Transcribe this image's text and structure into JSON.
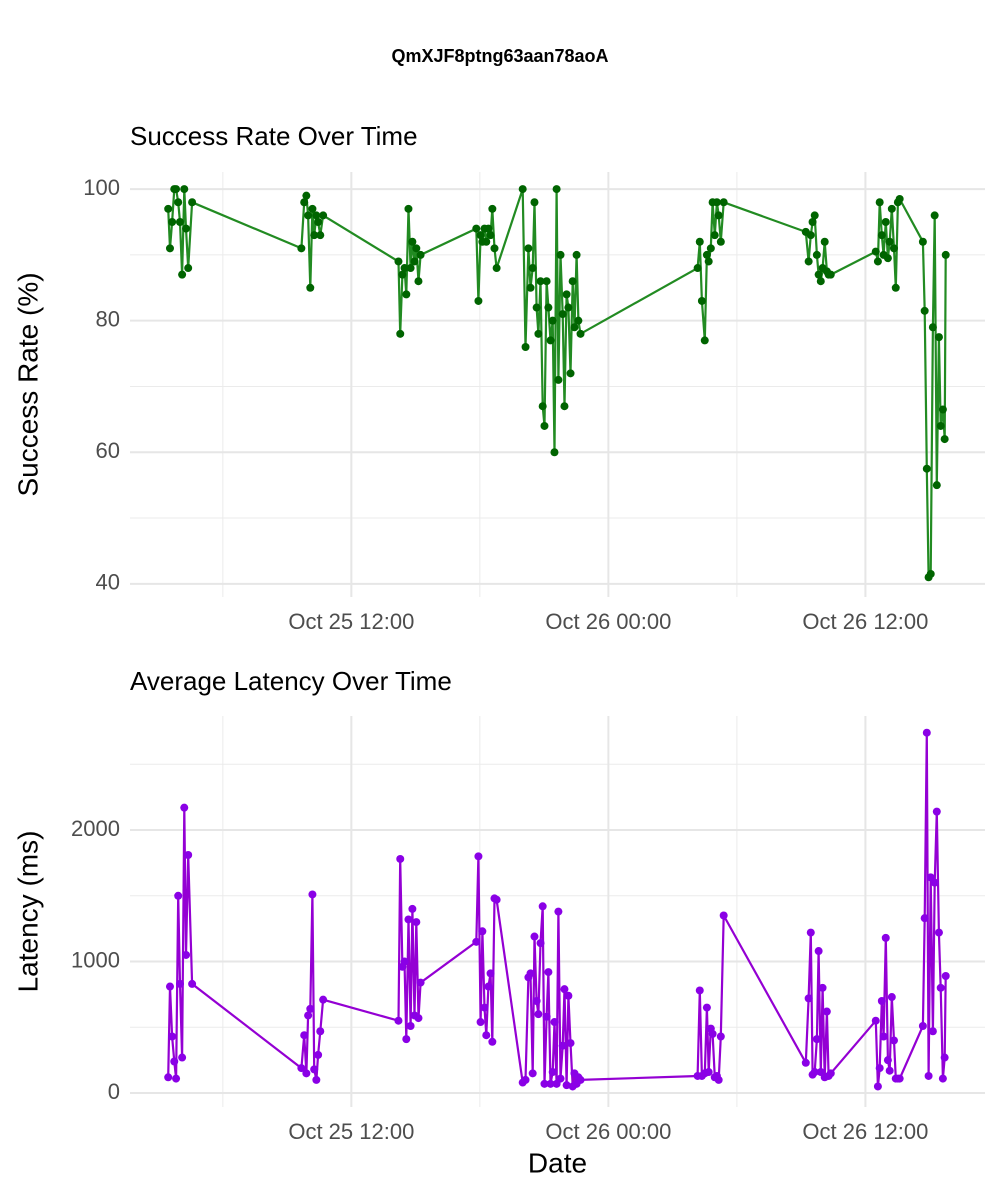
{
  "title": "QmXJF8ptng63aan78aoA",
  "chart_data": [
    {
      "type": "line",
      "title": "Success Rate Over Time",
      "ylabel": "Success Rate (%)",
      "xlim": [
        "Oct 25 01:40",
        "Oct 26 17:35"
      ],
      "xticks": [
        "Oct 25 12:00",
        "Oct 26 00:00",
        "Oct 26 12:00"
      ],
      "xminor": [
        "Oct 25 06:00",
        "Oct 25 18:00",
        "Oct 26 06:00"
      ],
      "ylim": [
        38,
        102.6
      ],
      "yticks": [
        40,
        60,
        80,
        100
      ],
      "yminor": [
        50,
        70,
        90
      ],
      "grid": true,
      "x": [
        "Oct 25 03:27",
        "Oct 25 03:32",
        "Oct 25 03:38",
        "Oct 25 03:44",
        "Oct 25 03:49",
        "Oct 25 03:55",
        "Oct 25 04:00",
        "Oct 25 04:06",
        "Oct 25 04:12",
        "Oct 25 04:17",
        "Oct 25 04:23",
        "Oct 25 04:34",
        "Oct 25 09:40",
        "Oct 25 09:48",
        "Oct 25 09:54",
        "Oct 25 09:59",
        "Oct 25 10:05",
        "Oct 25 10:11",
        "Oct 25 10:16",
        "Oct 25 10:22",
        "Oct 25 10:27",
        "Oct 25 10:33",
        "Oct 25 10:41",
        "Oct 25 14:12",
        "Oct 25 14:17",
        "Oct 25 14:23",
        "Oct 25 14:29",
        "Oct 25 14:34",
        "Oct 25 14:40",
        "Oct 25 14:46",
        "Oct 25 14:51",
        "Oct 25 14:57",
        "Oct 25 15:02",
        "Oct 25 15:08",
        "Oct 25 15:14",
        "Oct 25 17:50",
        "Oct 25 17:56",
        "Oct 25 18:02",
        "Oct 25 18:07",
        "Oct 25 18:13",
        "Oct 25 18:18",
        "Oct 25 18:24",
        "Oct 25 18:30",
        "Oct 25 18:35",
        "Oct 25 18:41",
        "Oct 25 18:47",
        "Oct 25 20:00",
        "Oct 25 20:08",
        "Oct 25 20:16",
        "Oct 25 20:22",
        "Oct 25 20:28",
        "Oct 25 20:33",
        "Oct 25 20:39",
        "Oct 25 20:44",
        "Oct 25 20:50",
        "Oct 25 20:56",
        "Oct 25 21:01",
        "Oct 25 21:07",
        "Oct 25 21:12",
        "Oct 25 21:18",
        "Oct 25 21:24",
        "Oct 25 21:29",
        "Oct 25 21:35",
        "Oct 25 21:40",
        "Oct 25 21:46",
        "Oct 25 21:52",
        "Oct 25 21:57",
        "Oct 25 22:03",
        "Oct 25 22:08",
        "Oct 25 22:14",
        "Oct 25 22:20",
        "Oct 25 22:25",
        "Oct 25 22:31",
        "Oct 25 22:36",
        "Oct 25 22:42",
        "Oct 26 04:10",
        "Oct 26 04:16",
        "Oct 26 04:22",
        "Oct 26 04:30",
        "Oct 26 04:36",
        "Oct 26 04:41",
        "Oct 26 04:47",
        "Oct 26 04:52",
        "Oct 26 04:58",
        "Oct 26 05:04",
        "Oct 26 05:09",
        "Oct 26 05:15",
        "Oct 26 05:23",
        "Oct 26 09:13",
        "Oct 26 09:21",
        "Oct 26 09:27",
        "Oct 26 09:32",
        "Oct 26 09:38",
        "Oct 26 09:44",
        "Oct 26 09:49",
        "Oct 26 09:55",
        "Oct 26 10:00",
        "Oct 26 10:06",
        "Oct 26 10:12",
        "Oct 26 10:17",
        "Oct 26 10:23",
        "Oct 26 12:29",
        "Oct 26 12:35",
        "Oct 26 12:40",
        "Oct 26 12:46",
        "Oct 26 12:51",
        "Oct 26 12:57",
        "Oct 26 13:03",
        "Oct 26 13:08",
        "Oct 26 13:14",
        "Oct 26 13:20",
        "Oct 26 13:25",
        "Oct 26 13:31",
        "Oct 26 13:36",
        "Oct 26 14:41",
        "Oct 26 14:46",
        "Oct 26 14:52",
        "Oct 26 14:57",
        "Oct 26 15:03",
        "Oct 26 15:09",
        "Oct 26 15:14",
        "Oct 26 15:20",
        "Oct 26 15:26",
        "Oct 26 15:31",
        "Oct 26 15:37",
        "Oct 26 15:42",
        "Oct 26 15:45"
      ],
      "series": [
        {
          "name": "Success Rate",
          "color": "#228b22",
          "marker_color": "#006400",
          "values": [
            97,
            91,
            95,
            100,
            100,
            98,
            95,
            87,
            100,
            94,
            88,
            98,
            91,
            98,
            99,
            96,
            85,
            97,
            93,
            96,
            95,
            93,
            96,
            89,
            78,
            87,
            88,
            84,
            97,
            88,
            92,
            89,
            91,
            86,
            90,
            94,
            83,
            93,
            92,
            94,
            92,
            94,
            93,
            97,
            91,
            88,
            100,
            76,
            91,
            85,
            88,
            98,
            82,
            78,
            86,
            67,
            64,
            86,
            82,
            77,
            80,
            60,
            100,
            71,
            90,
            81,
            67,
            84,
            82,
            72,
            86,
            79,
            90,
            80,
            78,
            88,
            92,
            83,
            77,
            90,
            89,
            91,
            98,
            93,
            98,
            96,
            92,
            98,
            93.5,
            89,
            93,
            95,
            96,
            90,
            87,
            86,
            88,
            92,
            87.5,
            87,
            87,
            90.5,
            89,
            98,
            93,
            90,
            95,
            89.5,
            92,
            97,
            91,
            85,
            98,
            98.5,
            92,
            81.5,
            57.5,
            41,
            41.5,
            79,
            96,
            55,
            77.5,
            64,
            66.5,
            62,
            90
          ]
        }
      ]
    },
    {
      "type": "line",
      "title": "Average Latency Over Time",
      "ylabel": "Latency (ms)",
      "xlabel": "Date",
      "xlim": [
        "Oct 25 01:40",
        "Oct 26 17:35"
      ],
      "xticks": [
        "Oct 25 12:00",
        "Oct 26 00:00",
        "Oct 26 12:00"
      ],
      "xminor": [
        "Oct 25 06:00",
        "Oct 25 18:00",
        "Oct 26 06:00"
      ],
      "ylim": [
        -106,
        2867
      ],
      "yticks": [
        0,
        1000,
        2000
      ],
      "yminor": [
        500,
        1500,
        2500
      ],
      "grid": true,
      "x": [
        "Oct 25 03:27",
        "Oct 25 03:32",
        "Oct 25 03:38",
        "Oct 25 03:44",
        "Oct 25 03:49",
        "Oct 25 03:55",
        "Oct 25 04:00",
        "Oct 25 04:06",
        "Oct 25 04:12",
        "Oct 25 04:17",
        "Oct 25 04:23",
        "Oct 25 04:34",
        "Oct 25 09:40",
        "Oct 25 09:48",
        "Oct 25 09:54",
        "Oct 25 09:59",
        "Oct 25 10:05",
        "Oct 25 10:11",
        "Oct 25 10:16",
        "Oct 25 10:22",
        "Oct 25 10:27",
        "Oct 25 10:33",
        "Oct 25 10:41",
        "Oct 25 14:12",
        "Oct 25 14:17",
        "Oct 25 14:23",
        "Oct 25 14:29",
        "Oct 25 14:34",
        "Oct 25 14:40",
        "Oct 25 14:46",
        "Oct 25 14:51",
        "Oct 25 14:57",
        "Oct 25 15:02",
        "Oct 25 15:08",
        "Oct 25 15:14",
        "Oct 25 17:50",
        "Oct 25 17:56",
        "Oct 25 18:02",
        "Oct 25 18:07",
        "Oct 25 18:13",
        "Oct 25 18:18",
        "Oct 25 18:24",
        "Oct 25 18:30",
        "Oct 25 18:35",
        "Oct 25 18:41",
        "Oct 25 18:47",
        "Oct 25 20:00",
        "Oct 25 20:08",
        "Oct 25 20:16",
        "Oct 25 20:22",
        "Oct 25 20:28",
        "Oct 25 20:33",
        "Oct 25 20:39",
        "Oct 25 20:44",
        "Oct 25 20:50",
        "Oct 25 20:56",
        "Oct 25 21:01",
        "Oct 25 21:07",
        "Oct 25 21:12",
        "Oct 25 21:18",
        "Oct 25 21:24",
        "Oct 25 21:29",
        "Oct 25 21:35",
        "Oct 25 21:40",
        "Oct 25 21:46",
        "Oct 25 21:52",
        "Oct 25 21:57",
        "Oct 25 22:03",
        "Oct 25 22:08",
        "Oct 25 22:14",
        "Oct 25 22:20",
        "Oct 25 22:25",
        "Oct 25 22:31",
        "Oct 25 22:36",
        "Oct 25 22:42",
        "Oct 26 04:10",
        "Oct 26 04:16",
        "Oct 26 04:22",
        "Oct 26 04:30",
        "Oct 26 04:36",
        "Oct 26 04:41",
        "Oct 26 04:47",
        "Oct 26 04:52",
        "Oct 26 04:58",
        "Oct 26 05:04",
        "Oct 26 05:09",
        "Oct 26 05:15",
        "Oct 26 05:23",
        "Oct 26 09:13",
        "Oct 26 09:21",
        "Oct 26 09:27",
        "Oct 26 09:32",
        "Oct 26 09:38",
        "Oct 26 09:44",
        "Oct 26 09:49",
        "Oct 26 09:55",
        "Oct 26 10:00",
        "Oct 26 10:06",
        "Oct 26 10:12",
        "Oct 26 10:17",
        "Oct 26 10:23",
        "Oct 26 12:29",
        "Oct 26 12:35",
        "Oct 26 12:40",
        "Oct 26 12:46",
        "Oct 26 12:51",
        "Oct 26 12:57",
        "Oct 26 13:03",
        "Oct 26 13:08",
        "Oct 26 13:14",
        "Oct 26 13:20",
        "Oct 26 13:25",
        "Oct 26 13:31",
        "Oct 26 13:36",
        "Oct 26 14:41",
        "Oct 26 14:46",
        "Oct 26 14:52",
        "Oct 26 14:57",
        "Oct 26 15:03",
        "Oct 26 15:09",
        "Oct 26 15:14",
        "Oct 26 15:20",
        "Oct 26 15:26",
        "Oct 26 15:31",
        "Oct 26 15:37",
        "Oct 26 15:42",
        "Oct 26 15:45"
      ],
      "series": [
        {
          "name": "Latency",
          "color": "#9400d3",
          "marker_color": "#8a00e6",
          "values": [
            120,
            810,
            430,
            240,
            110,
            1500,
            830,
            270,
            2170,
            1050,
            1810,
            830,
            190,
            440,
            150,
            590,
            640,
            1510,
            180,
            100,
            290,
            470,
            710,
            550,
            1780,
            960,
            1000,
            410,
            1320,
            510,
            1400,
            590,
            1300,
            570,
            840,
            1150,
            1800,
            540,
            1230,
            650,
            440,
            810,
            910,
            390,
            1480,
            1470,
            80,
            100,
            880,
            910,
            150,
            1190,
            700,
            600,
            1140,
            1420,
            70,
            580,
            920,
            70,
            160,
            540,
            70,
            1380,
            110,
            360,
            790,
            60,
            740,
            380,
            50,
            150,
            70,
            120,
            100,
            130,
            780,
            130,
            150,
            650,
            160,
            490,
            450,
            120,
            130,
            100,
            430,
            1350,
            230,
            720,
            1220,
            140,
            160,
            410,
            1080,
            160,
            800,
            120,
            620,
            130,
            150,
            550,
            50,
            190,
            700,
            430,
            1180,
            250,
            170,
            730,
            400,
            110,
            110,
            110,
            510,
            1330,
            2740,
            130,
            1640,
            470,
            1600,
            2140,
            1220,
            800,
            110,
            270,
            890
          ]
        }
      ]
    }
  ]
}
